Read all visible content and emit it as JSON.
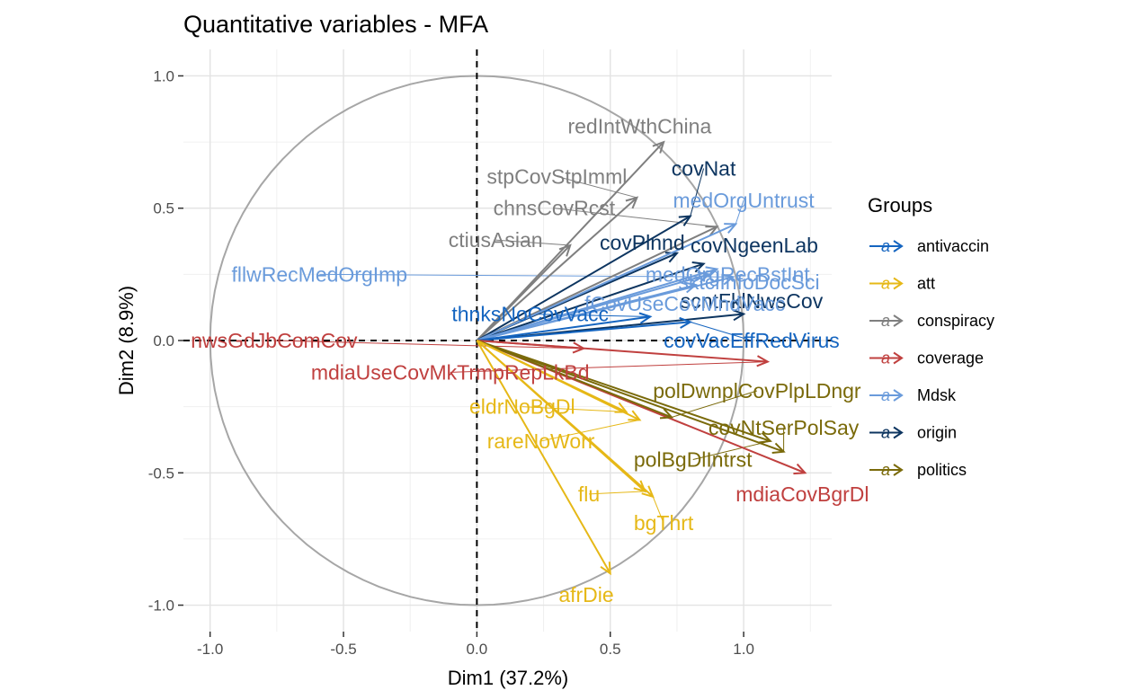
{
  "chart_data": {
    "type": "scatter",
    "title": "Quantitative variables - MFA",
    "xlabel": "Dim1 (37.2%)",
    "ylabel": "Dim2 (8.9%)",
    "xlim": [
      -1.1,
      1.33
    ],
    "ylim": [
      -1.1,
      1.1
    ],
    "x_ticks": [
      -1.0,
      -0.5,
      0.0,
      0.5,
      1.0
    ],
    "x_tick_labels": [
      "-1.0",
      "-0.5",
      "0.0",
      "0.5",
      "1.0"
    ],
    "y_ticks": [
      -1.0,
      -0.5,
      0.0,
      0.5,
      1.0
    ],
    "y_tick_labels": [
      "-1.0",
      "-0.5",
      "0.0",
      "0.5",
      "1.0"
    ],
    "grid": true,
    "unit_circle": true,
    "legend": {
      "title": "Groups",
      "placement": "right",
      "key_glyph": "a",
      "entries": [
        {
          "name": "antivaccin",
          "color": "#1565C0"
        },
        {
          "name": "att",
          "color": "#E6B817"
        },
        {
          "name": "conspiracy",
          "color": "#7F7F7F"
        },
        {
          "name": "coverage",
          "color": "#C0403F"
        },
        {
          "name": "Mdsk",
          "color": "#6A9BDB"
        },
        {
          "name": "origin",
          "color": "#0D3560"
        },
        {
          "name": "politics",
          "color": "#7A6A0A"
        }
      ]
    },
    "group_colors": {
      "antivaccin": "#1565C0",
      "att": "#E6B817",
      "conspiracy": "#7F7F7F",
      "coverage": "#C0403F",
      "Mdsk": "#6A9BDB",
      "origin": "#0D3560",
      "politics": "#7A6A0A"
    },
    "variables": [
      {
        "name": "redIntWthChina",
        "group": "conspiracy",
        "x": 0.7,
        "y": 0.75,
        "lx": 0.61,
        "ly": 0.81
      },
      {
        "name": "stpCovStpImml",
        "group": "conspiracy",
        "x": 0.6,
        "y": 0.54,
        "lx": 0.3,
        "ly": 0.62
      },
      {
        "name": "chnsCovRcst",
        "group": "conspiracy",
        "x": 0.9,
        "y": 0.43,
        "lx": 0.29,
        "ly": 0.5
      },
      {
        "name": "ctiusAsian",
        "group": "conspiracy",
        "x": 0.35,
        "y": 0.36,
        "lx": 0.07,
        "ly": 0.38
      },
      {
        "name": "covNat",
        "group": "origin",
        "x": 0.8,
        "y": 0.47,
        "lx": 0.85,
        "ly": 0.65
      },
      {
        "name": "covPlnnd",
        "group": "origin",
        "x": 0.75,
        "y": 0.33,
        "lx": 0.62,
        "ly": 0.37
      },
      {
        "name": "covNgeenLab",
        "group": "origin",
        "x": 0.85,
        "y": 0.29,
        "lx": 1.04,
        "ly": 0.36
      },
      {
        "name": "scntFklNwsCov",
        "group": "origin",
        "x": 1.0,
        "y": 0.1,
        "lx": 1.03,
        "ly": 0.15
      },
      {
        "name": "medOrgUntrust",
        "group": "Mdsk",
        "x": 0.97,
        "y": 0.44,
        "lx": 1.0,
        "ly": 0.53
      },
      {
        "name": "fllwRecMedOrgImp",
        "group": "Mdsk",
        "x": 0.96,
        "y": 0.24,
        "lx": -0.59,
        "ly": 0.25
      },
      {
        "name": "medOrgRecBstInt",
        "group": "Mdsk",
        "x": 0.9,
        "y": 0.27,
        "lx": 0.94,
        "ly": 0.25
      },
      {
        "name": "sktclInfoDocSci",
        "group": "Mdsk",
        "x": 0.87,
        "y": 0.25,
        "lx": 1.02,
        "ly": 0.22
      },
      {
        "name": "fCovUseCovMndVacc",
        "group": "Mdsk",
        "x": 0.82,
        "y": 0.21,
        "lx": 0.78,
        "ly": 0.14
      },
      {
        "name": "thnksNoCovVacc",
        "group": "antivaccin",
        "x": 0.65,
        "y": 0.09,
        "lx": 0.2,
        "ly": 0.1
      },
      {
        "name": "covVacEffRedVirus",
        "group": "antivaccin",
        "x": 0.8,
        "y": 0.07,
        "lx": 1.03,
        "ly": 0.0
      },
      {
        "name": "nwsGdJbComCov",
        "group": "coverage",
        "x": 0.4,
        "y": -0.03,
        "lx": -0.76,
        "ly": 0.0
      },
      {
        "name": "mdiaUseCovMkTrmpRepLkBd",
        "group": "coverage",
        "x": 1.09,
        "y": -0.08,
        "lx": -0.1,
        "ly": -0.12
      },
      {
        "name": "mdiaCovBgrDl",
        "group": "coverage",
        "x": 1.23,
        "y": -0.5,
        "lx": 1.22,
        "ly": -0.58
      },
      {
        "name": "polDwnplCovPlpLDngr",
        "group": "politics",
        "x": 0.73,
        "y": -0.29,
        "lx": 1.05,
        "ly": -0.19
      },
      {
        "name": "covNtSerPolSay",
        "group": "politics",
        "x": 1.15,
        "y": -0.42,
        "lx": 1.15,
        "ly": -0.33
      },
      {
        "name": "polBgDlIntrst",
        "group": "politics",
        "x": 1.1,
        "y": -0.38,
        "lx": 0.81,
        "ly": -0.45
      },
      {
        "name": "eldrNoBgDl",
        "group": "att",
        "x": 0.56,
        "y": -0.27,
        "lx": 0.17,
        "ly": -0.25
      },
      {
        "name": "rareNoWorr",
        "group": "att",
        "x": 0.61,
        "y": -0.3,
        "lx": 0.24,
        "ly": -0.38
      },
      {
        "name": "flu",
        "group": "att",
        "x": 0.63,
        "y": -0.57,
        "lx": 0.42,
        "ly": -0.58
      },
      {
        "name": "bgThrt",
        "group": "att",
        "x": 0.66,
        "y": -0.59,
        "lx": 0.7,
        "ly": -0.69
      },
      {
        "name": "afrDie",
        "group": "att",
        "x": 0.5,
        "y": -0.88,
        "lx": 0.41,
        "ly": -0.96
      }
    ]
  }
}
